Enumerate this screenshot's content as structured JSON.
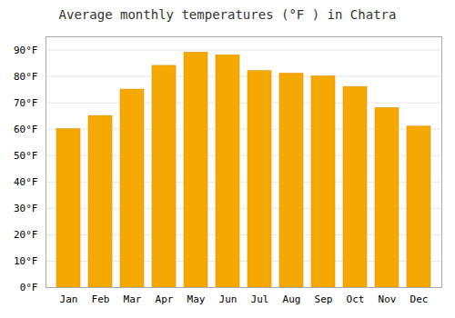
{
  "chart_data": {
    "type": "bar",
    "title": "Average monthly temperatures (°F ) in Chatra",
    "categories": [
      "Jan",
      "Feb",
      "Mar",
      "Apr",
      "May",
      "Jun",
      "Jul",
      "Aug",
      "Sep",
      "Oct",
      "Nov",
      "Dec"
    ],
    "values": [
      60,
      65,
      75,
      84,
      89,
      88,
      82,
      81,
      80,
      76,
      68,
      61
    ],
    "color": "#F5A800",
    "ylim": [
      0,
      95
    ],
    "yticks": [
      {
        "value": 0,
        "label": "0°F"
      },
      {
        "value": 10,
        "label": "10°F"
      },
      {
        "value": 20,
        "label": "20°F"
      },
      {
        "value": 30,
        "label": "30°F"
      },
      {
        "value": 40,
        "label": "40°F"
      },
      {
        "value": 50,
        "label": "50°F"
      },
      {
        "value": 60,
        "label": "60°F"
      },
      {
        "value": 70,
        "label": "70°F"
      },
      {
        "value": 80,
        "label": "80°F"
      },
      {
        "value": 90,
        "label": "90°F"
      }
    ],
    "grid": true
  }
}
